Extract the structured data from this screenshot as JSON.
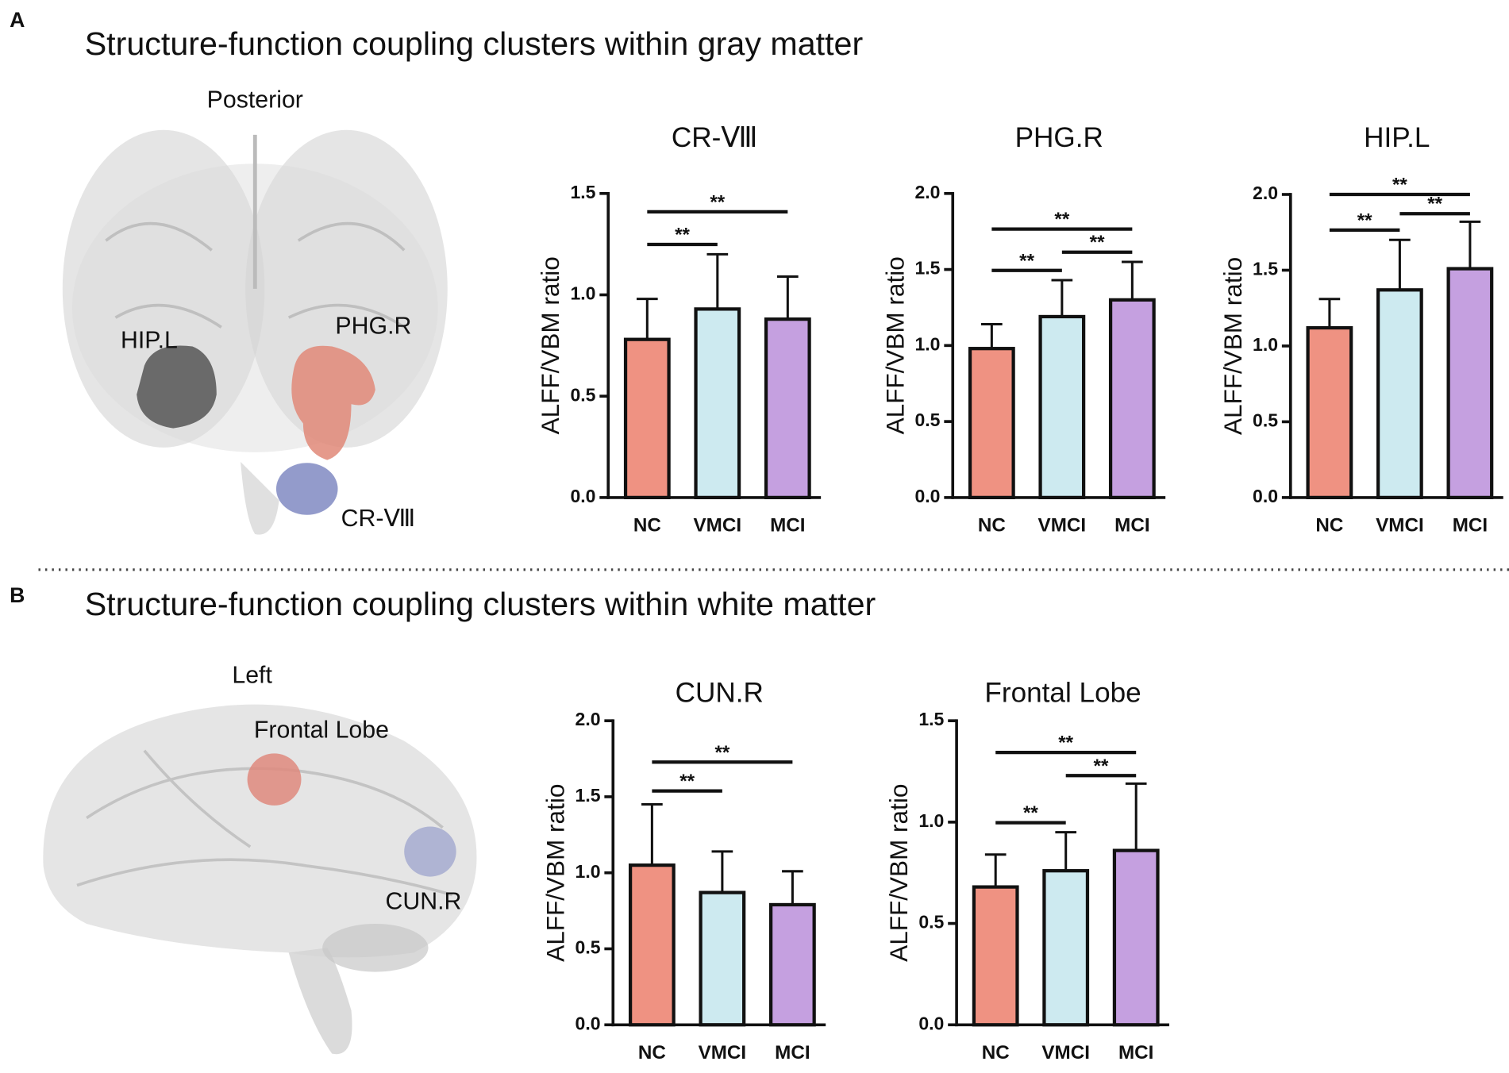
{
  "panels": [
    {
      "label": "A",
      "title": "Structure-function coupling clusters within gray matter",
      "view": "Posterior",
      "regions": [
        "HIP.L",
        "PHG.R",
        "CR-Ⅷ"
      ]
    },
    {
      "label": "B",
      "title": "Structure-function coupling clusters within white matter",
      "view": "Left",
      "regions": [
        "Frontal Lobe",
        "CUN.R"
      ]
    }
  ],
  "chart_data": [
    {
      "type": "bar",
      "title": "CR-Ⅷ",
      "ylabel": "ALFF/VBM ratio",
      "categories": [
        "NC",
        "VMCI",
        "MCI"
      ],
      "values": [
        0.78,
        0.93,
        0.88
      ],
      "errors": [
        0.2,
        0.27,
        0.21
      ],
      "colors": [
        "#ef9282",
        "#cdeaf0",
        "#c5a0e0"
      ],
      "ylim": [
        0,
        1.5
      ],
      "yticks": [
        {
          "value": 0,
          "label": "0.0"
        },
        {
          "value": 0.5,
          "label": "0.5"
        },
        {
          "value": 1,
          "label": "1.0"
        },
        {
          "value": 1.5,
          "label": "1.5"
        }
      ],
      "annotations": [
        {
          "between": [
            0,
            1
          ],
          "label": "**"
        },
        {
          "between": [
            0,
            2
          ],
          "label": "**"
        }
      ]
    },
    {
      "type": "bar",
      "title": "PHG.R",
      "ylabel": "ALFF/VBM ratio",
      "categories": [
        "NC",
        "VMCI",
        "MCI"
      ],
      "values": [
        0.98,
        1.19,
        1.3
      ],
      "errors": [
        0.16,
        0.24,
        0.25
      ],
      "colors": [
        "#ef9282",
        "#cdeaf0",
        "#c5a0e0"
      ],
      "ylim": [
        0,
        2
      ],
      "yticks": [
        {
          "value": 0,
          "label": "0.0"
        },
        {
          "value": 0.5,
          "label": "0.5"
        },
        {
          "value": 1,
          "label": "1.0"
        },
        {
          "value": 1.5,
          "label": "1.5"
        },
        {
          "value": 2,
          "label": "2.0"
        }
      ],
      "annotations": [
        {
          "between": [
            0,
            1
          ],
          "label": "**"
        },
        {
          "between": [
            1,
            2
          ],
          "label": "**"
        },
        {
          "between": [
            0,
            2
          ],
          "label": "**"
        }
      ]
    },
    {
      "type": "bar",
      "title": "HIP.L",
      "ylabel": "ALFF/VBM ratio",
      "categories": [
        "NC",
        "VMCI",
        "MCI"
      ],
      "values": [
        1.12,
        1.37,
        1.51
      ],
      "errors": [
        0.19,
        0.33,
        0.31
      ],
      "colors": [
        "#ef9282",
        "#cdeaf0",
        "#c5a0e0"
      ],
      "ylim": [
        0,
        2
      ],
      "yticks": [
        {
          "value": 0,
          "label": "0.0"
        },
        {
          "value": 0.5,
          "label": "0.5"
        },
        {
          "value": 1,
          "label": "1.0"
        },
        {
          "value": 1.5,
          "label": "1.5"
        },
        {
          "value": 2,
          "label": "2.0"
        }
      ],
      "annotations": [
        {
          "between": [
            0,
            1
          ],
          "label": "**"
        },
        {
          "between": [
            1,
            2
          ],
          "label": "**"
        },
        {
          "between": [
            0,
            2
          ],
          "label": "**"
        }
      ]
    },
    {
      "type": "bar",
      "title": "CUN.R",
      "ylabel": "ALFF/VBM ratio",
      "categories": [
        "NC",
        "VMCI",
        "MCI"
      ],
      "values": [
        1.05,
        0.87,
        0.79
      ],
      "errors": [
        0.4,
        0.27,
        0.22
      ],
      "colors": [
        "#ef9282",
        "#cdeaf0",
        "#c5a0e0"
      ],
      "ylim": [
        0,
        2
      ],
      "yticks": [
        {
          "value": 0,
          "label": "0.0"
        },
        {
          "value": 0.5,
          "label": "0.5"
        },
        {
          "value": 1,
          "label": "1.0"
        },
        {
          "value": 1.5,
          "label": "1.5"
        },
        {
          "value": 2,
          "label": "2.0"
        }
      ],
      "annotations": [
        {
          "between": [
            0,
            1
          ],
          "label": "**"
        },
        {
          "between": [
            0,
            2
          ],
          "label": "**"
        }
      ]
    },
    {
      "type": "bar",
      "title": "Frontal Lobe",
      "ylabel": "ALFF/VBM ratio",
      "categories": [
        "NC",
        "VMCI",
        "MCI"
      ],
      "values": [
        0.68,
        0.76,
        0.86
      ],
      "errors": [
        0.16,
        0.19,
        0.33
      ],
      "colors": [
        "#ef9282",
        "#cdeaf0",
        "#c5a0e0"
      ],
      "ylim": [
        0,
        1.5
      ],
      "yticks": [
        {
          "value": 0,
          "label": "0.0"
        },
        {
          "value": 0.5,
          "label": "0.5"
        },
        {
          "value": 1,
          "label": "1.0"
        },
        {
          "value": 1.5,
          "label": "1.5"
        }
      ],
      "annotations": [
        {
          "between": [
            0,
            1
          ],
          "label": "**"
        },
        {
          "between": [
            1,
            2
          ],
          "label": "**"
        },
        {
          "between": [
            0,
            2
          ],
          "label": "**"
        }
      ]
    }
  ]
}
